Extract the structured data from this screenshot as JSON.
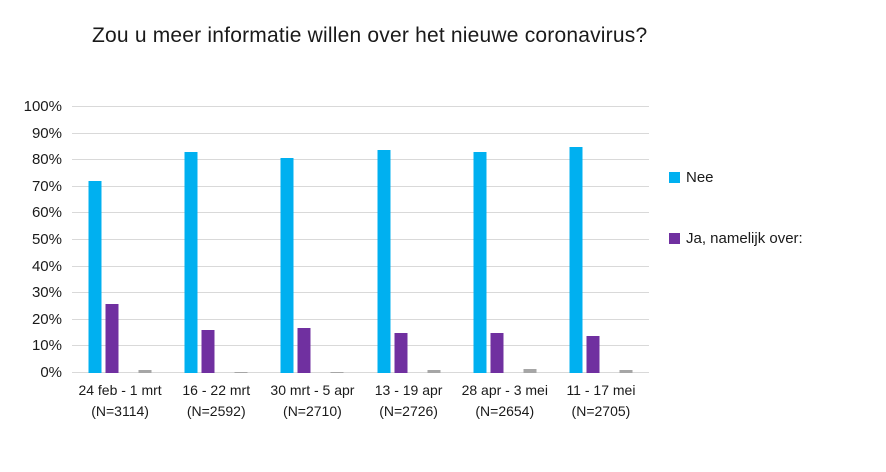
{
  "chart_data": {
    "type": "bar",
    "title": "Zou u meer informatie willen over het nieuwe coronavirus?",
    "xlabel": "",
    "ylabel": "",
    "ylim": [
      0,
      100
    ],
    "grid": true,
    "legend_position": "right",
    "y_ticks": [
      {
        "value": 0,
        "label": "0%"
      },
      {
        "value": 10,
        "label": "10%"
      },
      {
        "value": 20,
        "label": "20%"
      },
      {
        "value": 30,
        "label": "30%"
      },
      {
        "value": 40,
        "label": "40%"
      },
      {
        "value": 50,
        "label": "50%"
      },
      {
        "value": 60,
        "label": "60%"
      },
      {
        "value": 70,
        "label": "70%"
      },
      {
        "value": 80,
        "label": "80%"
      },
      {
        "value": 90,
        "label": "90%"
      },
      {
        "value": 100,
        "label": "100%"
      }
    ],
    "categories": [
      {
        "period": "24 feb - 1 mrt",
        "n_label": "(N=3114)"
      },
      {
        "period": "16 - 22 mrt",
        "n_label": "(N=2592)"
      },
      {
        "period": "30 mrt - 5 apr",
        "n_label": "(N=2710)"
      },
      {
        "period": "13 - 19 apr",
        "n_label": "(N=2726)"
      },
      {
        "period": "28 apr - 3 mei",
        "n_label": "(N=2654)"
      },
      {
        "period": "11 - 17 mei",
        "n_label": "(N=2705)"
      }
    ],
    "series": [
      {
        "key": "nee",
        "name": "Nee",
        "color": "#00B0F0",
        "values": [
          72,
          83,
          81,
          84,
          83,
          85
        ]
      },
      {
        "key": "ja-namelijk-over",
        "name": "Ja, namelijk over:",
        "color": "#7030A0",
        "values": [
          26,
          16,
          17,
          15,
          15,
          14
        ]
      },
      {
        "key": "unlabeled-gray",
        "name": "",
        "color": "#A6A6A6",
        "values": [
          1,
          0.5,
          0.5,
          1,
          1.5,
          1
        ]
      }
    ],
    "colors": {
      "gridline": "#D9D9D9",
      "text": "#1A1A1A",
      "background": "#FFFFFF"
    }
  }
}
